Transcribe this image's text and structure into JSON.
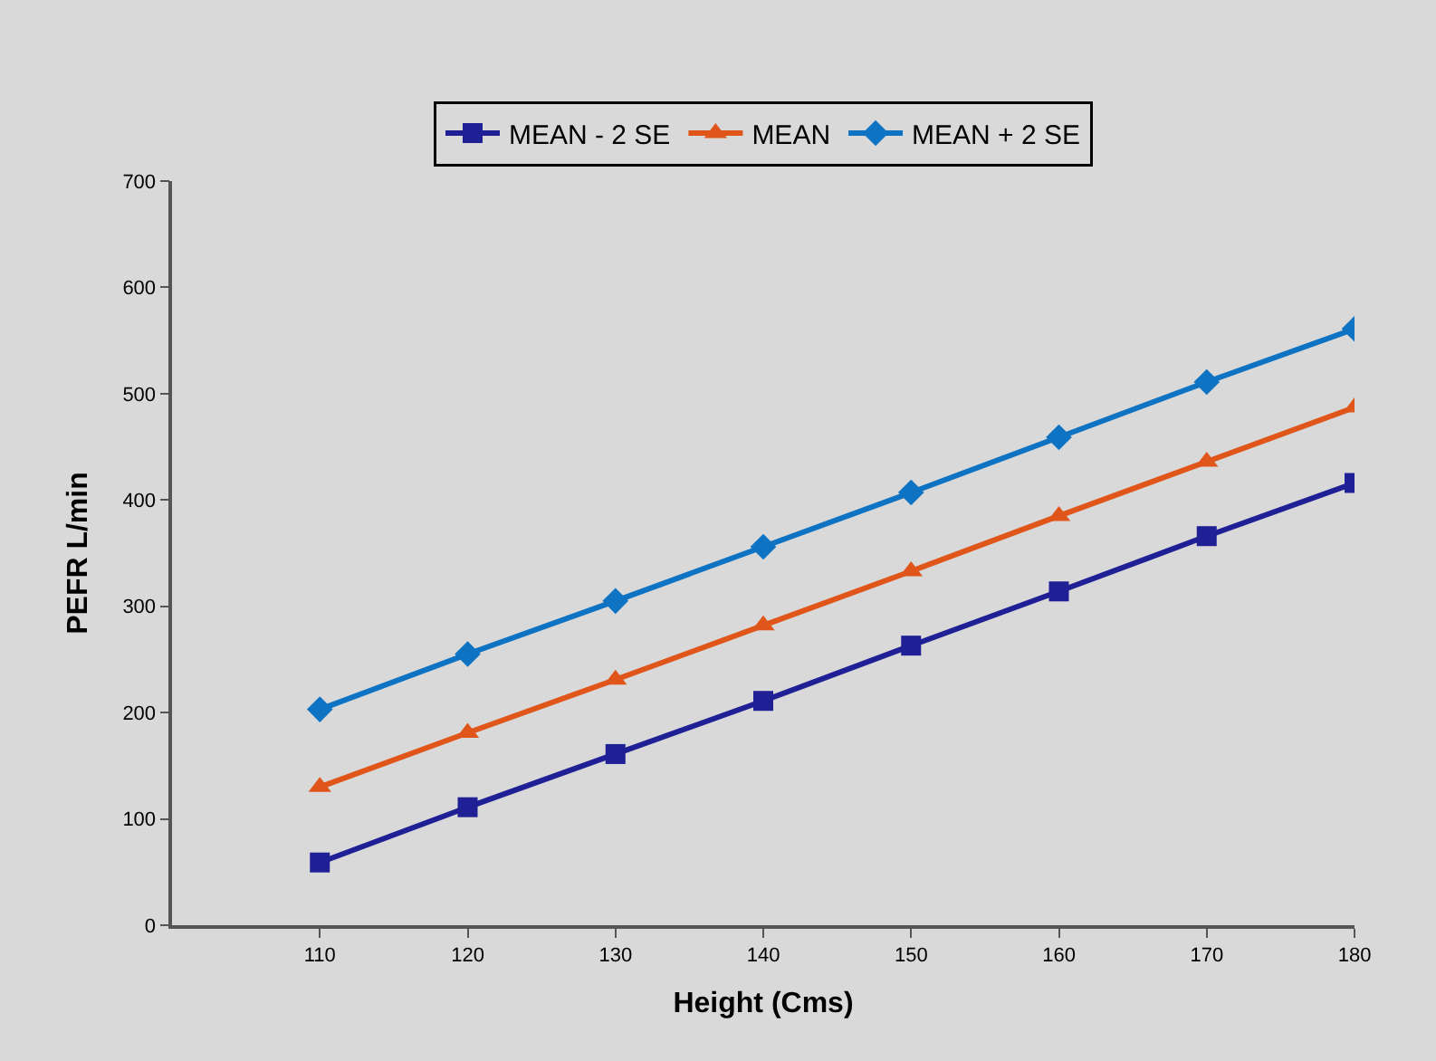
{
  "chart_data": {
    "type": "line",
    "xlabel": "Height (Cms)",
    "ylabel": "PEFR L/min",
    "x": [
      110,
      120,
      130,
      140,
      150,
      160,
      170,
      180
    ],
    "xlim": [
      100,
      180
    ],
    "xticks": [
      110,
      120,
      130,
      140,
      150,
      160,
      170,
      180
    ],
    "ylim": [
      0,
      700
    ],
    "yticks": [
      0,
      100,
      200,
      300,
      400,
      500,
      600,
      700
    ],
    "grid": false,
    "legend": "top",
    "series": [
      {
        "name": "MEAN - 2 SE",
        "color": "#1f1f96",
        "marker": "square",
        "values": [
          59,
          111,
          161,
          211,
          263,
          314,
          366,
          416
        ]
      },
      {
        "name": "MEAN",
        "color": "#e0561a",
        "marker": "triangle",
        "values": [
          130,
          181,
          231,
          282,
          333,
          385,
          436,
          487
        ]
      },
      {
        "name": "MEAN + 2 SE",
        "color": "#0f73c3",
        "marker": "diamond",
        "values": [
          203,
          255,
          305,
          356,
          407,
          459,
          511,
          561
        ]
      }
    ]
  }
}
